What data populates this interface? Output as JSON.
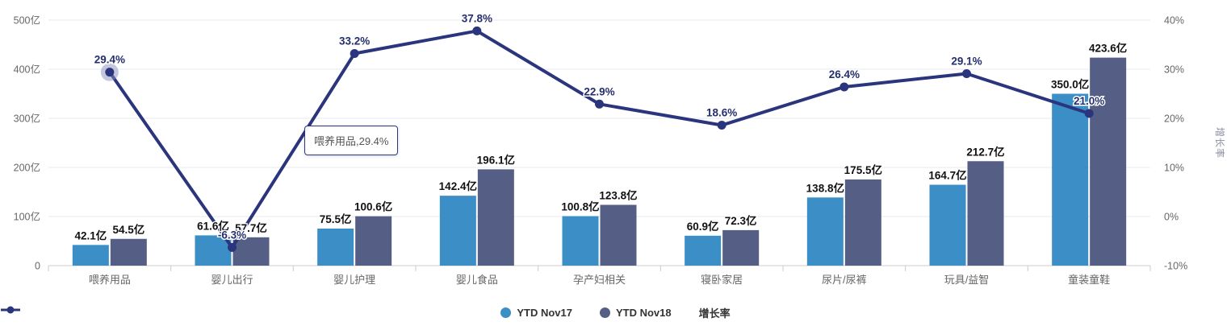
{
  "chart_data": {
    "type": "bar",
    "subtype": "grouped-bars-with-line-overlay",
    "categories": [
      "喂养用品",
      "婴儿出行",
      "婴儿护理",
      "婴儿食品",
      "孕产妇相关",
      "寝卧家居",
      "尿片/尿裤",
      "玩具/益智",
      "童装童鞋"
    ],
    "series": [
      {
        "name": "YTD Nov17",
        "type": "bar",
        "unit": "亿",
        "color": "#3B8EC6",
        "values": [
          42.1,
          61.6,
          75.5,
          142.4,
          100.8,
          60.9,
          138.8,
          164.7,
          350.0
        ]
      },
      {
        "name": "YTD Nov18",
        "type": "bar",
        "unit": "亿",
        "color": "#555E84",
        "values": [
          54.5,
          57.7,
          100.6,
          196.1,
          123.8,
          72.3,
          175.5,
          212.7,
          423.6
        ]
      },
      {
        "name": "增长率",
        "type": "line",
        "unit": "%",
        "color": "#2B357D",
        "values": [
          29.4,
          -6.3,
          33.2,
          37.8,
          22.9,
          18.6,
          26.4,
          29.1,
          21.0
        ]
      }
    ],
    "left_axis": {
      "min": 0,
      "max": 500,
      "ticks": [
        "0",
        "100亿",
        "200亿",
        "300亿",
        "400亿",
        "500亿"
      ]
    },
    "right_axis": {
      "min": -10,
      "max": 40,
      "ticks": [
        "-10%",
        "0%",
        "10%",
        "20%",
        "30%",
        "40%"
      ],
      "label": "增长率"
    },
    "tooltip": {
      "text": "喂养用品,29.4%"
    },
    "highlight_index": 0,
    "legend_position": "bottom-center",
    "grid": "horizontal-lines-only",
    "highlight_halo_color": "rgba(137,143,189,0.5)",
    "grid_line_color": "#E7E9F0",
    "axis_line_color": "#CCCCCC"
  }
}
